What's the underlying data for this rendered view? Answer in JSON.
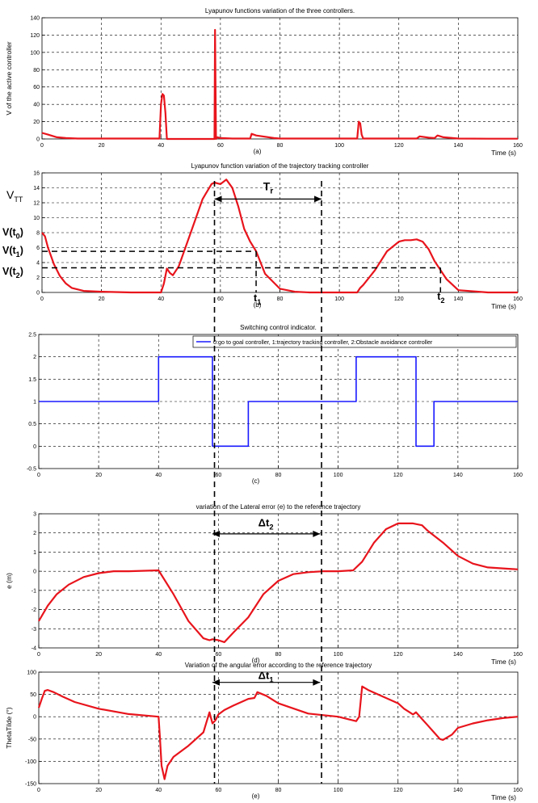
{
  "chart_data": [
    {
      "type": "line",
      "title": "Lyapunov functions  variation of the three controllers.",
      "ylabel": "V of the active controller",
      "xlabel": "Time (s)",
      "caption": "(a)",
      "xlim": [
        0,
        160
      ],
      "ylim": [
        0,
        140
      ],
      "xticks": [
        "0",
        "20",
        "40",
        "60",
        "80",
        "100",
        "120",
        "140",
        "160"
      ],
      "yticks": [
        "0",
        "20",
        "40",
        "60",
        "80",
        "100",
        "120",
        "140"
      ],
      "grid": true,
      "series": [
        {
          "color": "#e8141c",
          "x": [
            0,
            2,
            5,
            8,
            12,
            20,
            39.5,
            40,
            40.5,
            41,
            41.5,
            42,
            58,
            58.2,
            58.5,
            59,
            60,
            64,
            70,
            70.5,
            72,
            78,
            80,
            106,
            106.5,
            107,
            107.5,
            108,
            120,
            126,
            127,
            130,
            132,
            133,
            135,
            140,
            150,
            160
          ],
          "y": [
            7,
            5,
            2,
            1,
            0.5,
            0.5,
            0.5,
            40,
            52,
            50,
            30,
            0,
            0,
            126,
            0,
            2,
            1,
            0.5,
            0.5,
            6,
            4,
            1,
            0.5,
            0.5,
            20,
            18,
            5,
            0.5,
            0.5,
            0.5,
            3,
            1.5,
            1,
            4,
            2,
            0.5,
            0.3,
            0.3
          ]
        }
      ]
    },
    {
      "type": "line",
      "title": "Lyapunov function  variation of the trajectory tracking controller",
      "ylabel": "V",
      "ylabel_sub": "TT",
      "xlabel": "Time (s)",
      "caption": "(b)",
      "xlim": [
        0,
        160
      ],
      "ylim": [
        0,
        16
      ],
      "xticks": [
        "0",
        "20",
        "40",
        "60",
        "80",
        "100",
        "120",
        "140",
        "160"
      ],
      "yticks": [
        "0",
        "2",
        "4",
        "6",
        "8",
        "10",
        "12",
        "14",
        "16"
      ],
      "grid": true,
      "annotations": {
        "Tr": "T",
        "Tr_sub": "r",
        "v0": "V(t",
        "v0_sub": "0",
        "v0_end": ")",
        "v1": "V(t",
        "v1_sub": "1",
        "v1_end": ")",
        "v2": "V(t",
        "v2_sub": "2",
        "v2_end": ")",
        "t1": "t",
        "t1_sub": "1",
        "t2": "t",
        "t2_sub": "2"
      },
      "series": [
        {
          "color": "#e8141c",
          "x": [
            0,
            1,
            2,
            4,
            6,
            8,
            10,
            14,
            20,
            30,
            40,
            41,
            42,
            43,
            44,
            46,
            50,
            54,
            57,
            58,
            60,
            62,
            64,
            66,
            68,
            70,
            72,
            75,
            80,
            85,
            90,
            106,
            107,
            108,
            112,
            116,
            120,
            122,
            124,
            126,
            128,
            130,
            132,
            134,
            136,
            140,
            150,
            160
          ],
          "y": [
            8,
            7.5,
            6,
            3.8,
            2.2,
            1.2,
            0.6,
            0.2,
            0.1,
            0,
            0,
            1.2,
            3.2,
            2.6,
            2.3,
            3.5,
            8,
            12.5,
            14.5,
            14.7,
            14.5,
            15.1,
            14,
            11.5,
            8.5,
            6.8,
            5.5,
            2.5,
            0.5,
            0.1,
            0,
            0,
            0.6,
            1,
            3,
            5.5,
            6.8,
            7,
            7,
            7.1,
            6.8,
            5.8,
            4.2,
            3,
            1.8,
            0.3,
            0,
            0
          ]
        }
      ]
    },
    {
      "type": "line",
      "title": "Switching control indicator.",
      "caption": "(c)",
      "xlim": [
        0,
        160
      ],
      "ylim": [
        -0.5,
        2.5
      ],
      "xticks": [
        "0",
        "20",
        "40",
        "60",
        "80",
        "100",
        "120",
        "140",
        "160"
      ],
      "yticks": [
        "-0.5",
        "0",
        "0.5",
        "1",
        "1.5",
        "2",
        "2.5"
      ],
      "grid": true,
      "legend_position": "top-right",
      "series": [
        {
          "name": "0:go to goal controller, 1:trajectory tracking controller, 2:Obstacle avoidance controller",
          "color": "#1a1aff",
          "x": [
            0,
            40,
            40,
            58,
            58,
            70,
            70,
            106,
            106,
            126,
            126,
            132,
            132,
            160
          ],
          "y": [
            1,
            1,
            2,
            2,
            0,
            0,
            1,
            1,
            2,
            2,
            0,
            0,
            1,
            1
          ]
        }
      ]
    },
    {
      "type": "line",
      "title": "variation of the Lateral error (e) to the reference trajectory",
      "ylabel": "e  (m)",
      "xlabel": "Time (s)",
      "caption": "(d)",
      "xlim": [
        0,
        160
      ],
      "ylim": [
        -4,
        3
      ],
      "xticks": [
        "0",
        "20",
        "40",
        "60",
        "80",
        "100",
        "120",
        "140",
        "160"
      ],
      "yticks": [
        "-4",
        "-3",
        "-2",
        "-1",
        "0",
        "1",
        "2",
        "3"
      ],
      "grid": true,
      "annotations": {
        "dt2": "Δt",
        "dt2_sub": "2"
      },
      "series": [
        {
          "color": "#e8141c",
          "x": [
            0,
            3,
            6,
            10,
            15,
            20,
            25,
            30,
            40,
            45,
            50,
            55,
            57,
            58,
            60,
            62,
            65,
            70,
            75,
            80,
            85,
            90,
            95,
            100,
            105,
            108,
            112,
            116,
            120,
            125,
            128,
            130,
            135,
            140,
            145,
            150,
            160
          ],
          "y": [
            -2.6,
            -1.8,
            -1.2,
            -0.7,
            -0.3,
            -0.1,
            0,
            0,
            0.05,
            -1.2,
            -2.6,
            -3.5,
            -3.6,
            -3.55,
            -3.6,
            -3.7,
            -3.2,
            -2.4,
            -1.2,
            -0.5,
            -0.15,
            -0.05,
            0,
            0,
            0.05,
            0.5,
            1.5,
            2.2,
            2.5,
            2.5,
            2.4,
            2.1,
            1.5,
            0.8,
            0.4,
            0.2,
            0.1
          ]
        }
      ]
    },
    {
      "type": "line",
      "title": "Variation of the angular error according to the reference trajectory",
      "ylabel": "ThetaTilde (°)",
      "xlabel": "Time (s)",
      "caption": "(e)",
      "xlim": [
        0,
        160
      ],
      "ylim": [
        -150,
        100
      ],
      "xticks": [
        "0",
        "20",
        "40",
        "60",
        "80",
        "100",
        "120",
        "140",
        "160"
      ],
      "yticks": [
        "-150",
        "-100",
        "-50",
        "0",
        "50",
        "100"
      ],
      "grid": true,
      "annotations": {
        "dt1": "Δt",
        "dt1_sub": "1"
      },
      "series": [
        {
          "color": "#e8141c",
          "x": [
            0,
            1,
            2,
            3,
            5,
            8,
            12,
            20,
            30,
            40,
            40.5,
            41,
            42,
            43,
            45,
            50,
            55,
            57,
            58,
            59,
            60,
            62,
            65,
            70,
            72,
            73,
            76,
            80,
            90,
            100,
            106,
            107,
            108,
            110,
            115,
            120,
            122,
            125,
            126,
            128,
            130,
            132,
            134,
            135,
            138,
            140,
            145,
            150,
            155,
            160
          ],
          "y": [
            20,
            40,
            58,
            60,
            55,
            45,
            33,
            18,
            6,
            0,
            -50,
            -110,
            -140,
            -110,
            -90,
            -65,
            -35,
            10,
            -15,
            -8,
            5,
            15,
            25,
            40,
            42,
            55,
            47,
            30,
            7,
            0,
            -10,
            0,
            68,
            60,
            45,
            30,
            18,
            5,
            10,
            -5,
            -20,
            -35,
            -50,
            -52,
            -40,
            -25,
            -15,
            -8,
            -3,
            0
          ]
        }
      ]
    }
  ]
}
